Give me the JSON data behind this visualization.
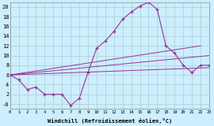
{
  "xlabel": "Windchill (Refroidissement éolien,°C)",
  "background_color": "#cceeff",
  "grid_color": "#aacccc",
  "line_color": "#993399",
  "x_min": 0,
  "x_max": 23,
  "y_min": -1,
  "y_max": 21,
  "yticks": [
    0,
    2,
    4,
    6,
    8,
    10,
    12,
    14,
    16,
    18,
    20
  ],
  "ytick_labels": [
    "-0",
    "2",
    "4",
    "6",
    "8",
    "10",
    "12",
    "14",
    "16",
    "18",
    "20"
  ],
  "xticks": [
    0,
    1,
    2,
    3,
    4,
    5,
    6,
    7,
    8,
    9,
    10,
    11,
    12,
    13,
    14,
    15,
    16,
    17,
    18,
    19,
    20,
    21,
    22,
    23
  ],
  "series_main": {
    "x": [
      0,
      1,
      2,
      3,
      4,
      5,
      6,
      7,
      8,
      9,
      10,
      11,
      12,
      13,
      14,
      15,
      16,
      17,
      18,
      19,
      20,
      21,
      22,
      23
    ],
    "y": [
      6,
      5,
      3,
      3.5,
      2,
      2,
      2,
      -0.3,
      1.2,
      6.5,
      11.5,
      13,
      15,
      17.5,
      19,
      20.2,
      21,
      19.5,
      12,
      10.5,
      8,
      6.5,
      8,
      8
    ]
  },
  "series_lines": [
    {
      "x": [
        0,
        22
      ],
      "y": [
        6,
        12
      ]
    },
    {
      "x": [
        0,
        23
      ],
      "y": [
        6,
        10
      ]
    },
    {
      "x": [
        0,
        23
      ],
      "y": [
        6,
        7.5
      ]
    }
  ]
}
